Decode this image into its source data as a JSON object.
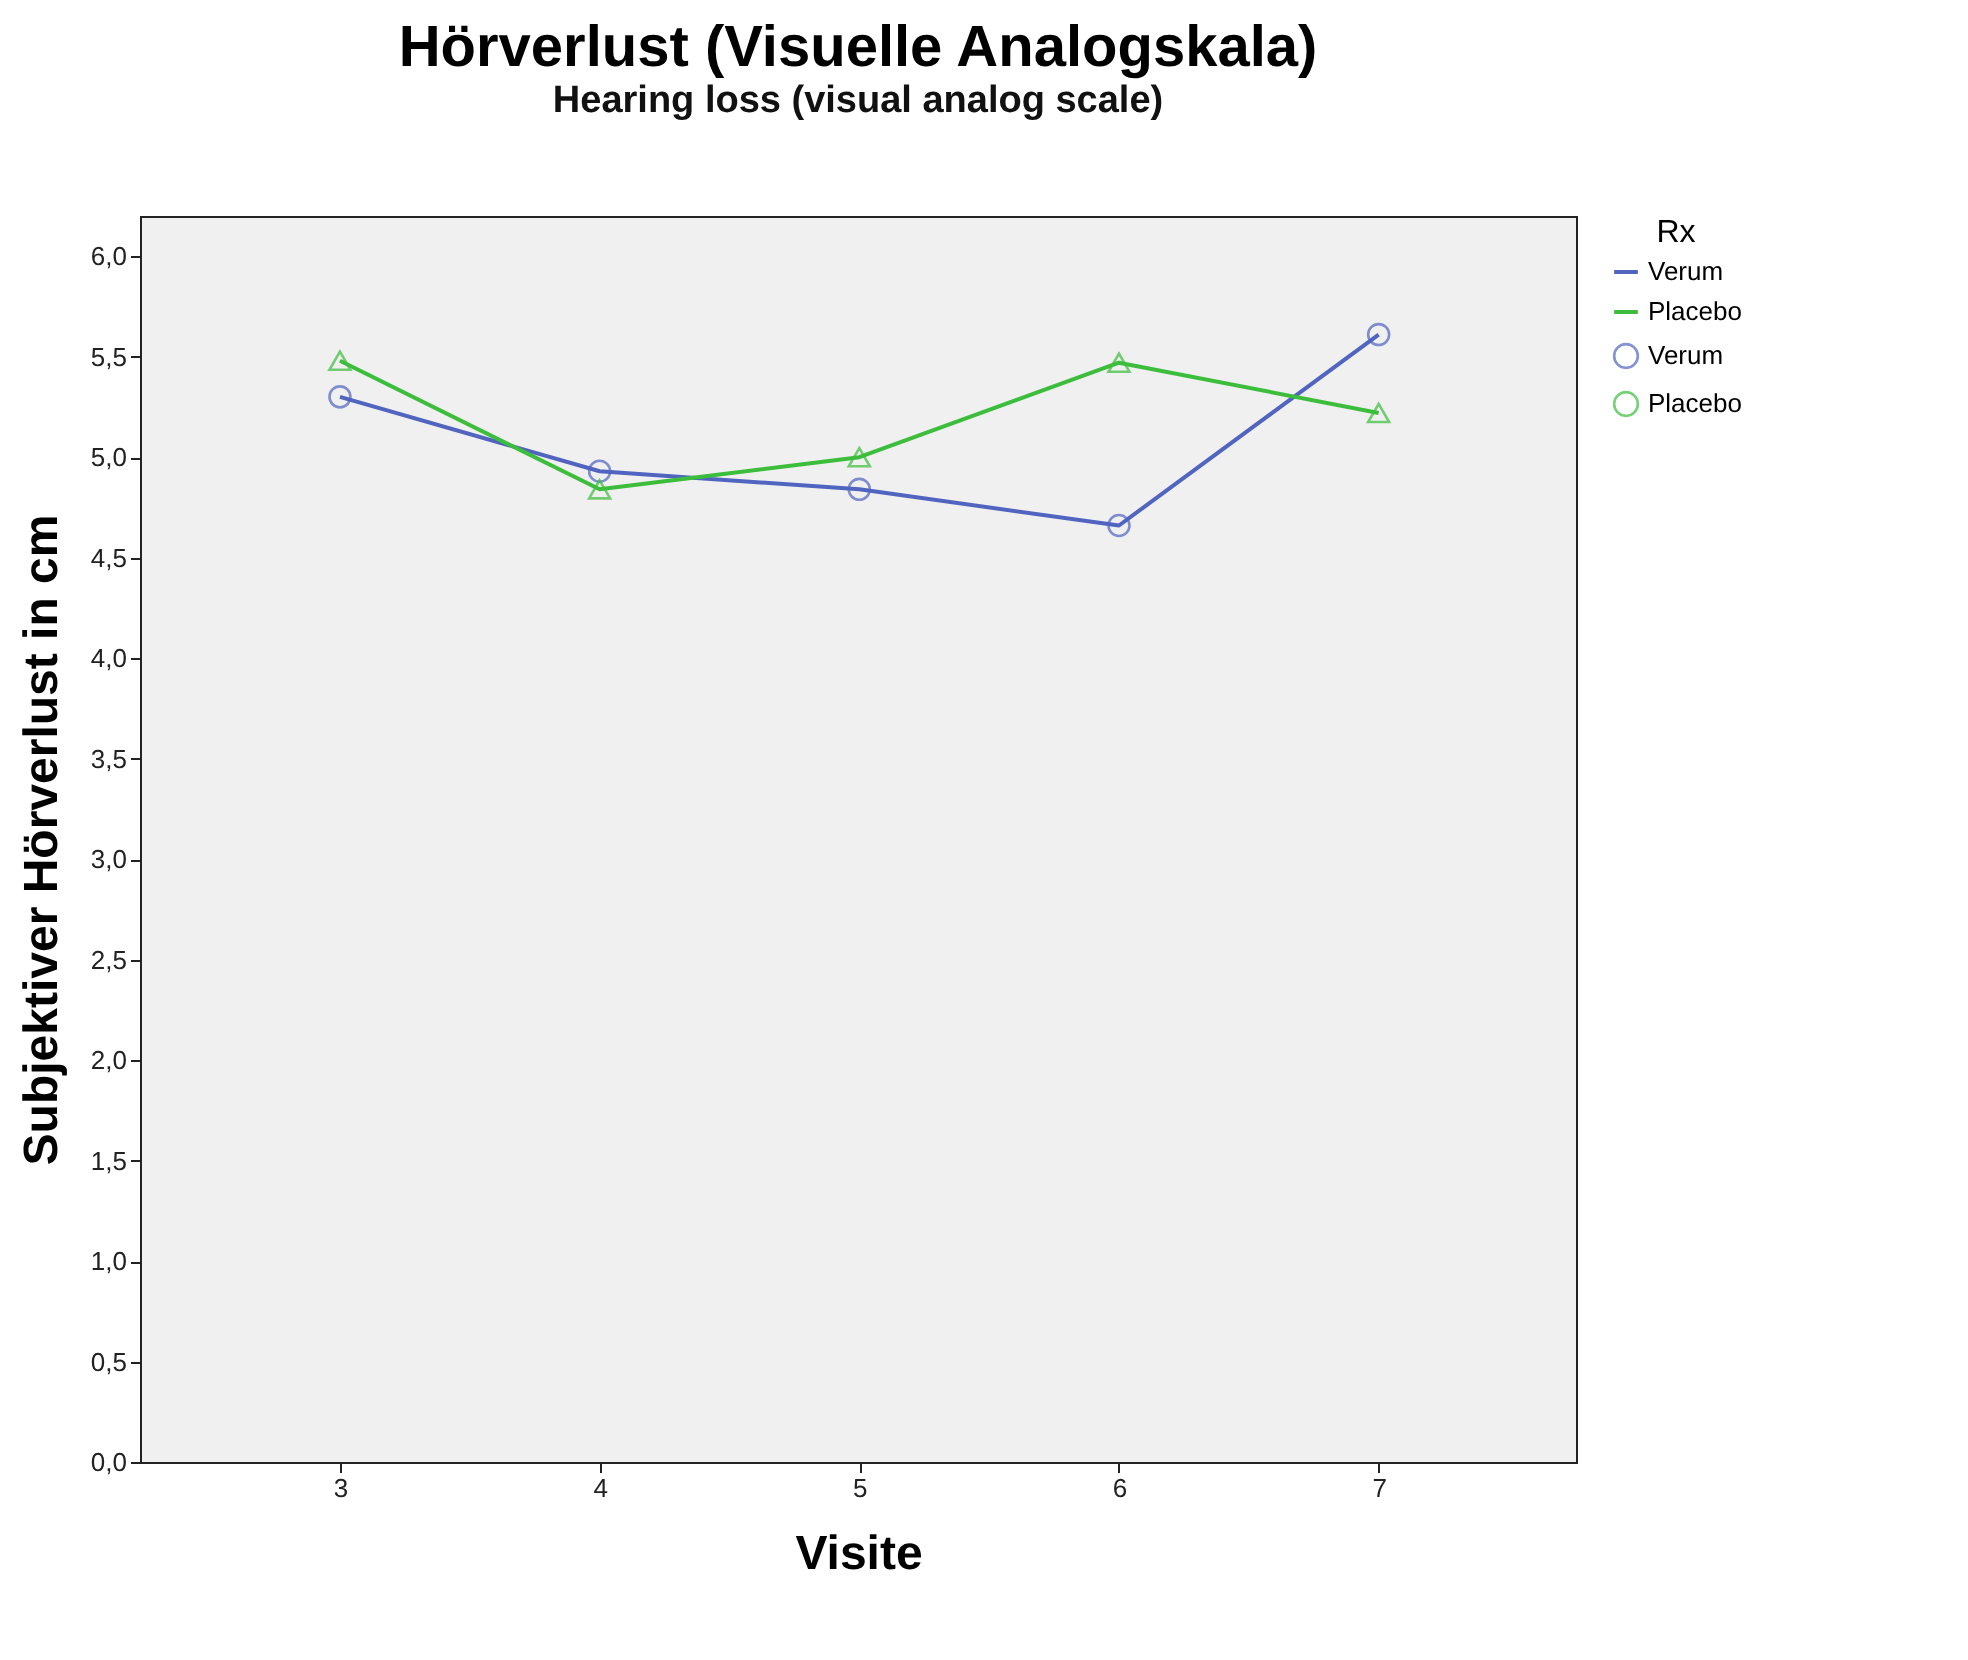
{
  "chart_data": {
    "type": "line",
    "title": "Hörverlust (Visuelle Analogskala)",
    "subtitle": "Hearing loss (visual analog scale)",
    "xlabel": "Visite",
    "ylabel": "Subjektiver Hörverlust in cm",
    "legend_title": "Rx",
    "legend": "right",
    "grid": false,
    "line_style": "solid",
    "x": [
      3,
      4,
      5,
      6,
      7
    ],
    "xlim": [
      2.23,
      7.76
    ],
    "xticks": [
      3,
      4,
      5,
      6,
      7
    ],
    "ylim": [
      0,
      6.2
    ],
    "yticks": [
      {
        "value": 0,
        "label": "0,0"
      },
      {
        "value": 0.5,
        "label": "0,5"
      },
      {
        "value": 1,
        "label": "1,0"
      },
      {
        "value": 1.5,
        "label": "1,5"
      },
      {
        "value": 2,
        "label": "2,0"
      },
      {
        "value": 2.5,
        "label": "2,5"
      },
      {
        "value": 3,
        "label": "3,0"
      },
      {
        "value": 3.5,
        "label": "3,5"
      },
      {
        "value": 4,
        "label": "4,0"
      },
      {
        "value": 4.5,
        "label": "4,5"
      },
      {
        "value": 5,
        "label": "5,0"
      },
      {
        "value": 5.5,
        "label": "5,5"
      },
      {
        "value": 6,
        "label": "6,0"
      }
    ],
    "series": [
      {
        "name": "Verum",
        "color": "#5064c0",
        "marker": "circle",
        "values": [
          5.3,
          4.93,
          4.84,
          4.66,
          5.61
        ]
      },
      {
        "name": "Placebo",
        "color": "#3cbe3c",
        "marker": "triangle",
        "values": [
          5.48,
          4.84,
          5.0,
          5.47,
          5.22
        ]
      }
    ]
  }
}
